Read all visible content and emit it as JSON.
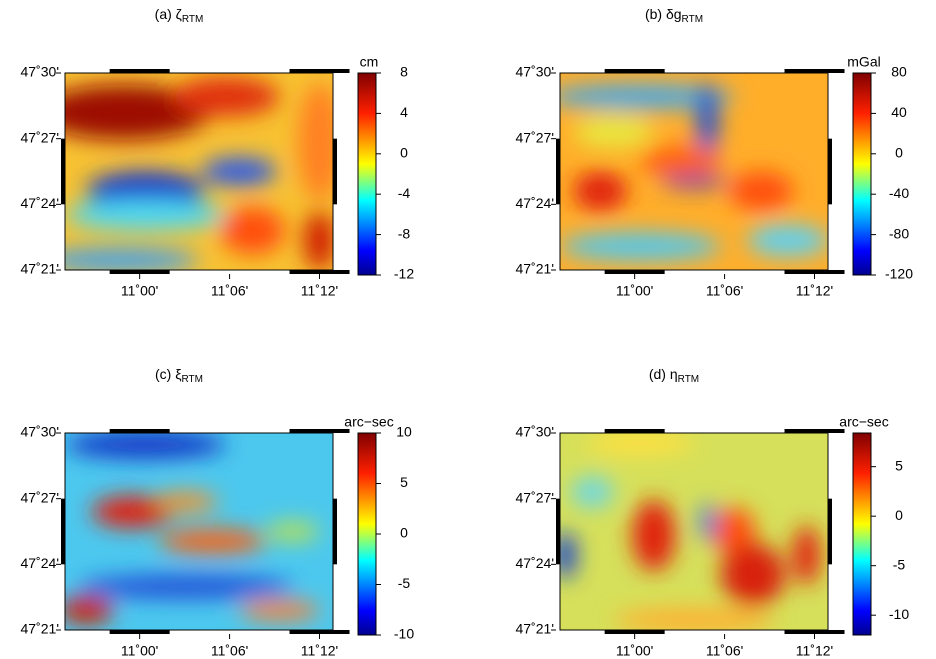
{
  "chart_data": [
    {
      "type": "heatmap",
      "title": "(a) ζ",
      "title_sub": "RTM",
      "xlim": [
        10.917,
        11.215
      ],
      "xticks": [
        {
          "value": 11.0,
          "label": "11˚00'"
        },
        {
          "value": 11.1,
          "label": "11˚06'"
        },
        {
          "value": 11.2,
          "label": "11˚12'"
        }
      ],
      "ylim": [
        47.35,
        47.5
      ],
      "yticks": [
        {
          "value": 47.35,
          "label": "47˚21'"
        },
        {
          "value": 47.4,
          "label": "47˚24'"
        },
        {
          "value": 47.45,
          "label": "47˚27'"
        },
        {
          "value": 47.5,
          "label": "47˚30'"
        }
      ],
      "colorbar": {
        "label": "cm",
        "lim": [
          -12,
          8
        ],
        "ticks": [
          -12,
          -8,
          -4,
          0,
          4,
          8
        ]
      }
    },
    {
      "type": "heatmap",
      "title": "(b) δg",
      "title_sub": "RTM",
      "xlim": [
        10.917,
        11.215
      ],
      "xticks": [
        {
          "value": 11.0,
          "label": "11˚00'"
        },
        {
          "value": 11.1,
          "label": "11˚06'"
        },
        {
          "value": 11.2,
          "label": "11˚12'"
        }
      ],
      "ylim": [
        47.35,
        47.5
      ],
      "yticks": [
        {
          "value": 47.35,
          "label": "47˚21'"
        },
        {
          "value": 47.4,
          "label": "47˚24'"
        },
        {
          "value": 47.45,
          "label": "47˚27'"
        },
        {
          "value": 47.5,
          "label": "47˚30'"
        }
      ],
      "colorbar": {
        "label": "mGal",
        "lim": [
          -120,
          80
        ],
        "ticks": [
          -120,
          -80,
          -40,
          0,
          40,
          80
        ]
      }
    },
    {
      "type": "heatmap",
      "title": "(c) ξ",
      "title_sub": "RTM",
      "xlim": [
        10.917,
        11.215
      ],
      "xticks": [
        {
          "value": 11.0,
          "label": "11˚00'"
        },
        {
          "value": 11.1,
          "label": "11˚06'"
        },
        {
          "value": 11.2,
          "label": "11˚12'"
        }
      ],
      "ylim": [
        47.35,
        47.5
      ],
      "yticks": [
        {
          "value": 47.35,
          "label": "47˚21'"
        },
        {
          "value": 47.4,
          "label": "47˚24'"
        },
        {
          "value": 47.45,
          "label": "47˚27'"
        },
        {
          "value": 47.5,
          "label": "47˚30'"
        }
      ],
      "colorbar": {
        "label": "arc−sec",
        "lim": [
          -10,
          10
        ],
        "ticks": [
          -10,
          -5,
          0,
          5,
          10
        ]
      }
    },
    {
      "type": "heatmap",
      "title": "(d) η",
      "title_sub": "RTM",
      "xlim": [
        10.917,
        11.215
      ],
      "xticks": [
        {
          "value": 11.0,
          "label": "11˚00'"
        },
        {
          "value": 11.1,
          "label": "11˚06'"
        },
        {
          "value": 11.2,
          "label": "11˚12'"
        }
      ],
      "ylim": [
        47.35,
        47.5
      ],
      "yticks": [
        {
          "value": 47.35,
          "label": "47˚21'"
        },
        {
          "value": 47.4,
          "label": "47˚24'"
        },
        {
          "value": 47.45,
          "label": "47˚27'"
        },
        {
          "value": 47.5,
          "label": "47˚30'"
        }
      ],
      "colorbar": {
        "label": "arc−sec",
        "lim": [
          -12,
          8.4
        ],
        "ticks": [
          -10,
          -5,
          0,
          5
        ]
      }
    }
  ]
}
